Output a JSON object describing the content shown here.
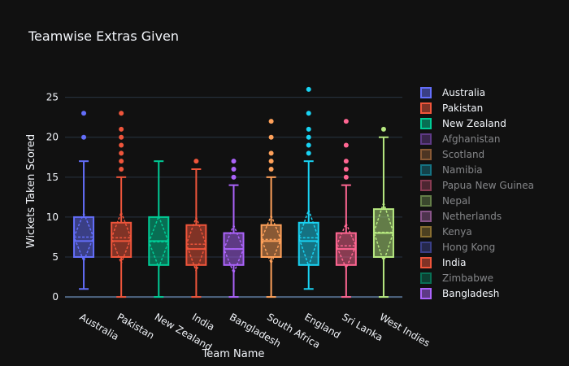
{
  "chart_data": {
    "type": "box",
    "title": "Teamwise Extras Given",
    "xlabel": "Team Name",
    "ylabel": "Wickets Taken Scored",
    "ylim": [
      -0.5,
      27
    ],
    "yticks": [
      0,
      5,
      10,
      15,
      20,
      25
    ],
    "grid": true,
    "legend_position": "right",
    "categories": [
      "Australia",
      "Pakistan",
      "New Zealand",
      "India",
      "Bangladesh",
      "South Africa",
      "England",
      "Sri Lanka",
      "West Indies"
    ],
    "series": [
      {
        "name": "Australia",
        "color": "#636efa",
        "min": 1,
        "q1": 5,
        "median": 7,
        "q3": 10,
        "max": 17,
        "mean": 7.5,
        "sd": 3.0,
        "outliers": [
          20,
          23
        ]
      },
      {
        "name": "Pakistan",
        "color": "#ef553b",
        "min": 0,
        "q1": 5,
        "median": 7,
        "q3": 9.3,
        "max": 15,
        "mean": 7.4,
        "sd": 3.2,
        "outliers": [
          16,
          17,
          18,
          19,
          20,
          21,
          23
        ]
      },
      {
        "name": "New Zealand",
        "color": "#00cc96",
        "min": 0,
        "q1": 4,
        "median": 7,
        "q3": 10,
        "max": 17,
        "mean": 6.9,
        "sd": 3.2,
        "outliers": []
      },
      {
        "name": "India",
        "color": "#ef553b",
        "min": 0,
        "q1": 4,
        "median": 6,
        "q3": 9,
        "max": 16,
        "mean": 6.6,
        "sd": 3.4,
        "outliers": [
          17
        ]
      },
      {
        "name": "Bangladesh",
        "color": "#ab63fa",
        "min": 0,
        "q1": 4,
        "median": 6,
        "q3": 8,
        "max": 14,
        "mean": 6.0,
        "sd": 3.0,
        "outliers": [
          15,
          16,
          17
        ]
      },
      {
        "name": "South Africa",
        "color": "#ffa15a",
        "min": 0,
        "q1": 5,
        "median": 7,
        "q3": 9,
        "max": 15,
        "mean": 7.2,
        "sd": 3.0,
        "outliers": [
          16,
          17,
          18,
          20,
          22
        ]
      },
      {
        "name": "England",
        "color": "#19d3f3",
        "min": 1,
        "q1": 4,
        "median": 7,
        "q3": 9.3,
        "max": 17,
        "mean": 7.4,
        "sd": 3.5,
        "outliers": [
          18,
          19,
          20,
          21,
          23,
          26
        ]
      },
      {
        "name": "Sri Lanka",
        "color": "#ff6692",
        "min": 0,
        "q1": 4,
        "median": 6,
        "q3": 8,
        "max": 14,
        "mean": 6.4,
        "sd": 2.8,
        "outliers": [
          15,
          16,
          17,
          19,
          22
        ]
      },
      {
        "name": "West Indies",
        "color": "#b6e880",
        "min": 0,
        "q1": 5,
        "median": 8,
        "q3": 11,
        "max": 20,
        "mean": 8.1,
        "sd": 3.7,
        "outliers": [
          21
        ]
      }
    ],
    "legend": [
      {
        "name": "Australia",
        "color": "#636efa",
        "active": true
      },
      {
        "name": "Pakistan",
        "color": "#ef553b",
        "active": true
      },
      {
        "name": "New Zealand",
        "color": "#00cc96",
        "active": true
      },
      {
        "name": "Afghanistan",
        "color": "#ab63fa",
        "active": false
      },
      {
        "name": "Scotland",
        "color": "#ffa15a",
        "active": false
      },
      {
        "name": "Namibia",
        "color": "#19d3f3",
        "active": false
      },
      {
        "name": "Papua New Guinea",
        "color": "#ff6692",
        "active": false
      },
      {
        "name": "Nepal",
        "color": "#b6e880",
        "active": false
      },
      {
        "name": "Netherlands",
        "color": "#ff97ff",
        "active": false
      },
      {
        "name": "Kenya",
        "color": "#fecb52",
        "active": false
      },
      {
        "name": "Hong Kong",
        "color": "#636efa",
        "active": false
      },
      {
        "name": "India",
        "color": "#ef553b",
        "active": true
      },
      {
        "name": "Zimbabwe",
        "color": "#00cc96",
        "active": false
      },
      {
        "name": "Bangladesh",
        "color": "#ab63fa",
        "active": true
      }
    ]
  }
}
